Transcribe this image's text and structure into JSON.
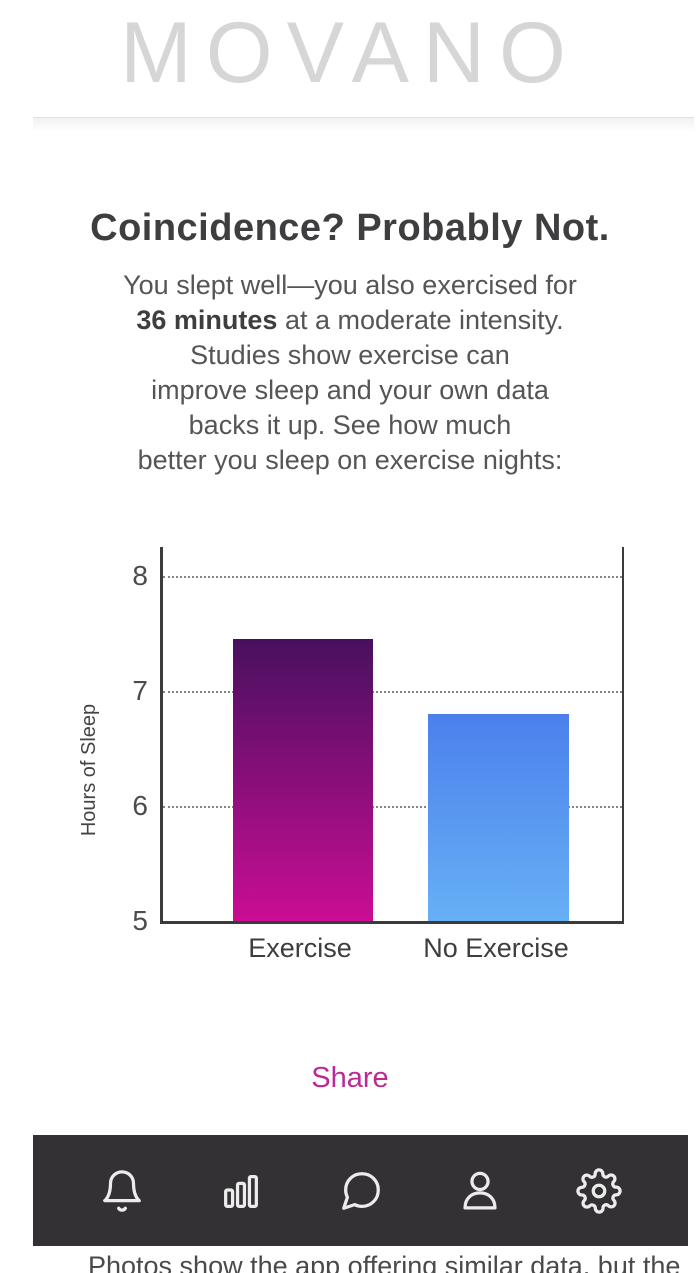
{
  "brand": {
    "logo_text": "MOVANO"
  },
  "insight": {
    "title": "Coincidence? Probably Not.",
    "body_lines": [
      [
        {
          "text": "You slept well—you also exercised for",
          "bold": false
        }
      ],
      [
        {
          "text": "36 minutes",
          "bold": true
        },
        {
          "text": " at a moderate intensity.",
          "bold": false
        }
      ],
      [
        {
          "text": "Studies show exercise can",
          "bold": false
        }
      ],
      [
        {
          "text": "improve sleep and your own data",
          "bold": false
        }
      ],
      [
        {
          "text": "backs it up. See how much",
          "bold": false
        }
      ],
      [
        {
          "text": "better you sleep on exercise nights:",
          "bold": false
        }
      ]
    ]
  },
  "chart_data": {
    "type": "bar",
    "title": "",
    "xlabel": "",
    "ylabel": "Hours of Sleep",
    "categories": [
      "Exercise",
      "No Exercise"
    ],
    "values": [
      7.45,
      6.8
    ],
    "ylim": [
      5,
      8.25
    ],
    "yticks": [
      8,
      7,
      6,
      5
    ],
    "gridlines": [
      8,
      7,
      6
    ],
    "grid_style": "dotted",
    "legend": "none",
    "bar_gradients": [
      {
        "top": "#48105f",
        "bottom": "#ca0d94"
      },
      {
        "top": "#4b80ec",
        "bottom": "#67b0f5"
      }
    ]
  },
  "share": {
    "label": "Share"
  },
  "nav": {
    "background": "#333134",
    "items": [
      {
        "name": "notifications",
        "icon": "bell-icon"
      },
      {
        "name": "stats",
        "icon": "bar-chart-icon"
      },
      {
        "name": "messages",
        "icon": "chat-bubble-icon"
      },
      {
        "name": "profile",
        "icon": "user-icon"
      },
      {
        "name": "settings",
        "icon": "gear-icon"
      }
    ]
  },
  "caption": {
    "text": "Photos show the app offering similar data, but the"
  },
  "colors": {
    "accent_pink": "#bc2b95",
    "axis": "#3b3b3b",
    "logo_gray": "#d6d6d6"
  }
}
